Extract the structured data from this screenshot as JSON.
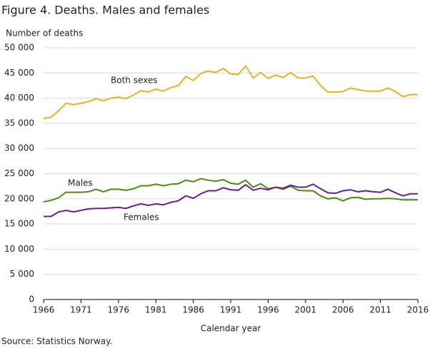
{
  "chart_data": {
    "type": "line",
    "title": "Figure 4. Deaths. Males and females",
    "y_label": "Number of deaths",
    "x_label": "Calendar year",
    "source": "Source: Statistics Norway.",
    "x": [
      1966,
      1967,
      1968,
      1969,
      1970,
      1971,
      1972,
      1973,
      1974,
      1975,
      1976,
      1977,
      1978,
      1979,
      1980,
      1981,
      1982,
      1983,
      1984,
      1985,
      1986,
      1987,
      1988,
      1989,
      1990,
      1991,
      1992,
      1993,
      1994,
      1995,
      1996,
      1997,
      1998,
      1999,
      2000,
      2001,
      2002,
      2003,
      2004,
      2005,
      2006,
      2007,
      2008,
      2009,
      2010,
      2011,
      2012,
      2013,
      2014,
      2015,
      2016
    ],
    "series": [
      {
        "name": "Both sexes",
        "color": "#e5b324",
        "values": [
          36000,
          36200,
          37500,
          39000,
          38700,
          39000,
          39300,
          39900,
          39500,
          40000,
          40200,
          39900,
          40600,
          41500,
          41200,
          41800,
          41400,
          42100,
          42500,
          44300,
          43500,
          44900,
          45400,
          45100,
          45900,
          44800,
          44700,
          46400,
          44000,
          45100,
          43900,
          44600,
          44100,
          45100,
          44000,
          44000,
          44400,
          42500,
          41200,
          41200,
          41300,
          42000,
          41700,
          41400,
          41400,
          41400,
          42000,
          41300,
          40300,
          40700,
          40700
        ]
      },
      {
        "name": "Males",
        "color": "#4b8a14",
        "values": [
          19400,
          19700,
          20200,
          21300,
          21300,
          21300,
          21400,
          21900,
          21400,
          21900,
          21900,
          21700,
          22000,
          22600,
          22600,
          22900,
          22600,
          22900,
          23000,
          23700,
          23400,
          24000,
          23700,
          23500,
          23800,
          23100,
          22900,
          23700,
          22300,
          23000,
          22000,
          22300,
          21900,
          22500,
          21700,
          21600,
          21600,
          20600,
          20000,
          20200,
          19600,
          20200,
          20300,
          19900,
          20000,
          20000,
          20100,
          20000,
          19800,
          19800,
          19800
        ]
      },
      {
        "name": "Females",
        "color": "#6b1d8c",
        "values": [
          16500,
          16500,
          17400,
          17700,
          17400,
          17700,
          18000,
          18100,
          18100,
          18200,
          18300,
          18100,
          18600,
          19000,
          18700,
          19000,
          18800,
          19300,
          19600,
          20600,
          20100,
          21000,
          21600,
          21600,
          22200,
          21800,
          21700,
          22800,
          21700,
          22100,
          21800,
          22300,
          22100,
          22700,
          22300,
          22300,
          22900,
          22000,
          21200,
          21100,
          21600,
          21800,
          21400,
          21600,
          21400,
          21300,
          21900,
          21200,
          20600,
          21000,
          21000
        ]
      }
    ],
    "xlim": [
      1966,
      2016
    ],
    "xticks": [
      1966,
      1971,
      1976,
      1981,
      1986,
      1991,
      1996,
      2001,
      2006,
      2011,
      2016
    ],
    "ylim": [
      0,
      50000
    ],
    "yticks": [
      0,
      {
        "value": 5000,
        "label": "5 000"
      },
      {
        "value": 10000,
        "label": "10 000"
      },
      {
        "value": 15000,
        "label": "15 000"
      },
      {
        "value": 20000,
        "label": "20 000"
      },
      {
        "value": 25000,
        "label": "25 000"
      },
      {
        "value": 30000,
        "label": "30 000"
      },
      {
        "value": 35000,
        "label": "35 000"
      },
      {
        "value": 40000,
        "label": "40 000"
      },
      {
        "value": 45000,
        "label": "45 000"
      },
      {
        "value": 50000,
        "label": "50 000"
      }
    ],
    "grid": true
  }
}
